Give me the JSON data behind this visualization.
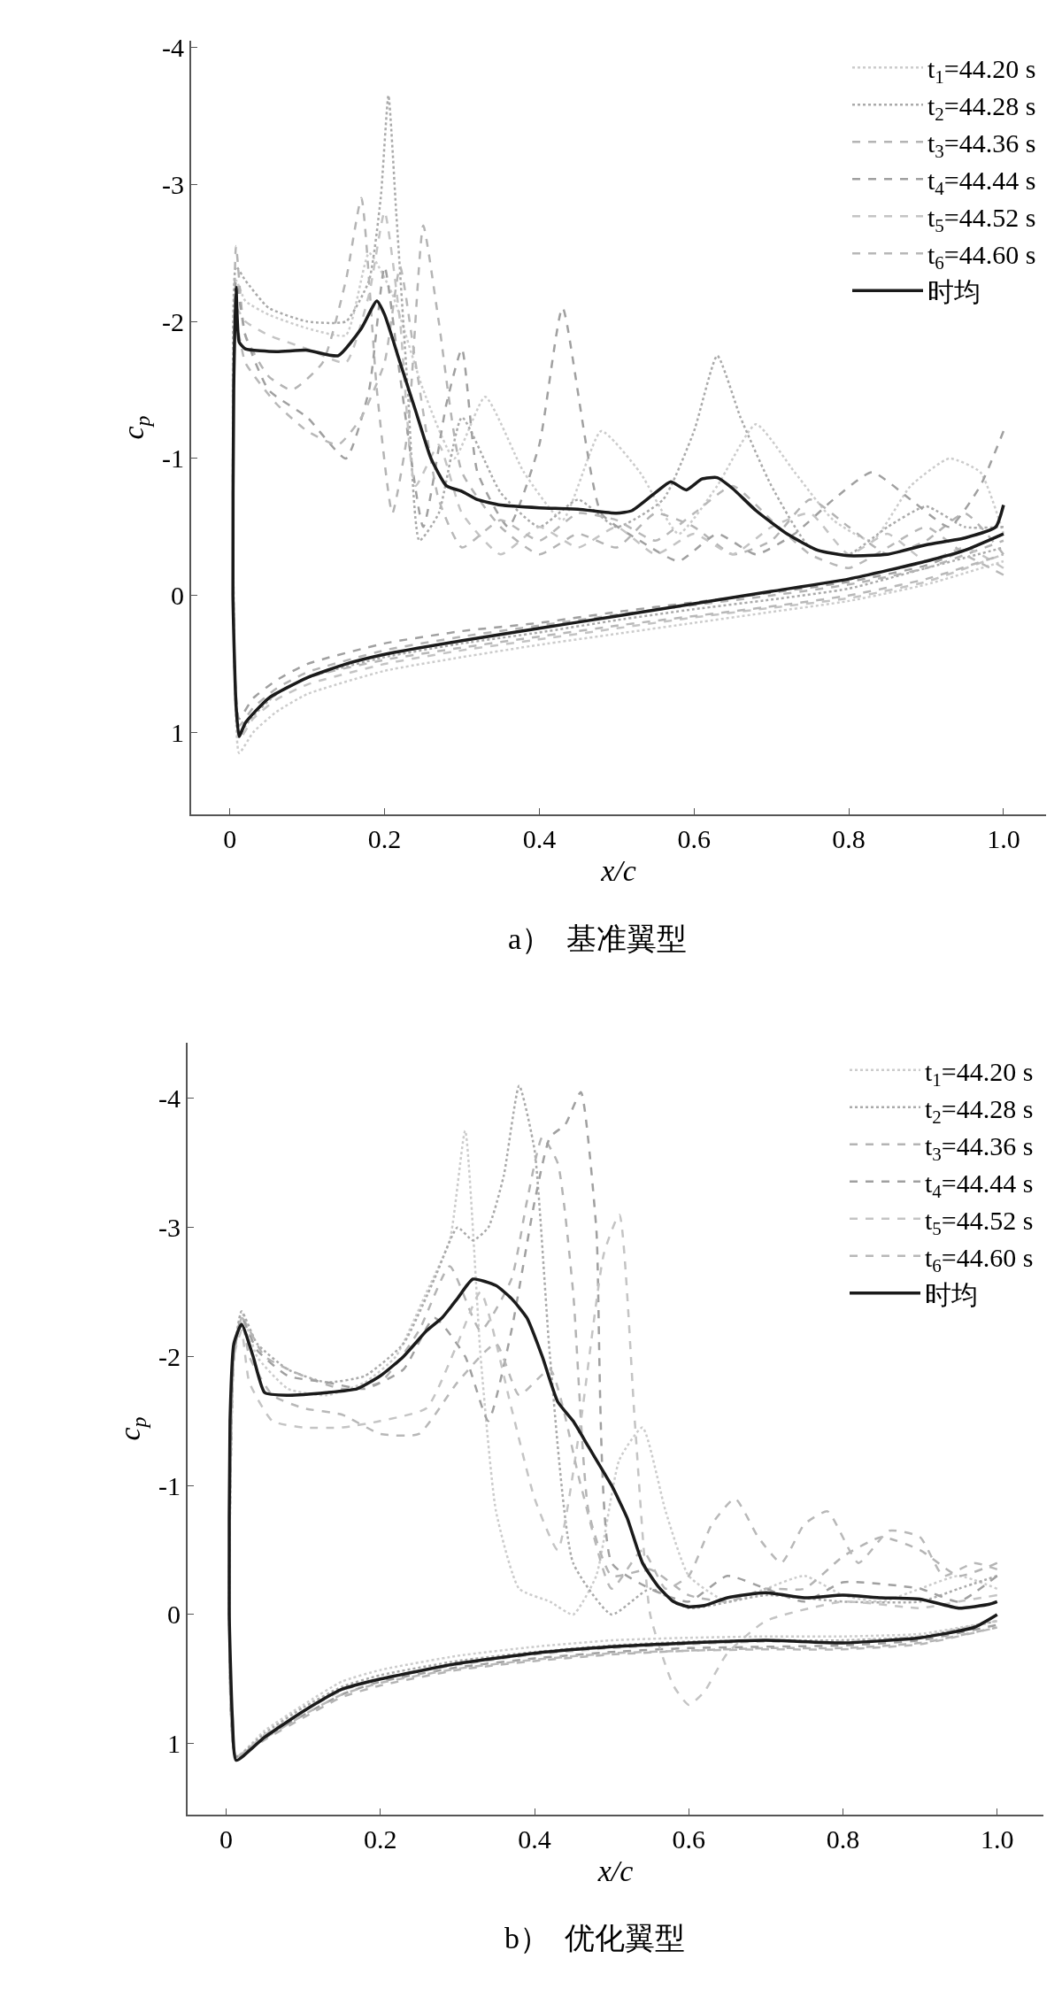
{
  "chart_data": [
    {
      "type": "line",
      "title": "a）  基准翼型",
      "xlabel": "x/c",
      "ylabel": "c$_{p}$",
      "xlim": [
        -0.05,
        1.055
      ],
      "ylim": [
        1.6,
        -4.05
      ],
      "xticks": [
        0,
        0.2,
        0.4,
        0.6,
        0.8,
        {
          "value": 1.0,
          "label": "1.0"
        }
      ],
      "yticks": [
        -4,
        -3,
        -2,
        -1,
        0,
        1
      ],
      "grid": false,
      "legend": "top right",
      "marker": "none",
      "series": [
        {
          "name": "t$_{1}$=44.20 s",
          "color": "#cccccc",
          "line_style": "dotted",
          "x": [
            1.0,
            0.97,
            0.93,
            0.88,
            0.83,
            0.78,
            0.73,
            0.68,
            0.63,
            0.58,
            0.53,
            0.48,
            0.43,
            0.38,
            0.33,
            0.29,
            0.25,
            0.21,
            0.18,
            0.15,
            0.1,
            0.05,
            0.02,
            0.008,
            0.004,
            0.006,
            0.012,
            0.03,
            0.06,
            0.1,
            0.2,
            0.3,
            0.4,
            0.5,
            0.6,
            0.7,
            0.8,
            0.9,
            1.0
          ],
          "values": [
            -0.45,
            -0.9,
            -1.0,
            -0.8,
            -0.4,
            -0.55,
            -0.9,
            -1.25,
            -0.8,
            -0.45,
            -0.9,
            -1.2,
            -0.55,
            -0.9,
            -1.45,
            -1.0,
            -1.5,
            -2.2,
            -2.5,
            -1.9,
            -1.95,
            -2.05,
            -2.15,
            -2.3,
            -1.0,
            0.5,
            1.15,
            1.0,
            0.85,
            0.72,
            0.55,
            0.45,
            0.36,
            0.28,
            0.2,
            0.12,
            0.04,
            -0.08,
            -0.25
          ]
        },
        {
          "name": "t$_{2}$=44.28 s",
          "color": "#aaaaaa",
          "line_style": "dotted",
          "x": [
            1.0,
            0.95,
            0.9,
            0.85,
            0.8,
            0.75,
            0.7,
            0.66,
            0.63,
            0.6,
            0.56,
            0.5,
            0.45,
            0.4,
            0.35,
            0.3,
            0.27,
            0.245,
            0.23,
            0.215,
            0.205,
            0.195,
            0.18,
            0.15,
            0.1,
            0.05,
            0.02,
            0.008,
            0.004,
            0.006,
            0.012,
            0.03,
            0.06,
            0.1,
            0.2,
            0.3,
            0.4,
            0.5,
            0.6,
            0.7,
            0.8,
            0.9,
            1.0
          ],
          "values": [
            -0.5,
            -0.5,
            -0.65,
            -0.5,
            -0.3,
            -0.35,
            -0.8,
            -1.3,
            -1.75,
            -1.2,
            -0.7,
            -0.5,
            -0.7,
            -0.5,
            -0.75,
            -1.3,
            -0.6,
            -0.4,
            -1.5,
            -2.8,
            -3.65,
            -2.9,
            -2.3,
            -2.0,
            -2.0,
            -2.1,
            -2.3,
            -2.4,
            -1.0,
            0.5,
            1.0,
            0.88,
            0.72,
            0.6,
            0.45,
            0.35,
            0.27,
            0.18,
            0.1,
            0.03,
            -0.05,
            -0.2,
            -0.35
          ]
        },
        {
          "name": "t$_{3}$=44.36 s",
          "color": "#b4b4b4",
          "line_style": "dashed",
          "x": [
            1.0,
            0.95,
            0.9,
            0.85,
            0.8,
            0.75,
            0.7,
            0.65,
            0.6,
            0.55,
            0.5,
            0.45,
            0.4,
            0.35,
            0.3,
            0.27,
            0.25,
            0.23,
            0.21,
            0.19,
            0.17,
            0.15,
            0.12,
            0.08,
            0.05,
            0.02,
            0.008,
            0.004,
            0.006,
            0.012,
            0.03,
            0.06,
            0.1,
            0.2,
            0.3,
            0.4,
            0.5,
            0.6,
            0.7,
            0.8,
            0.9,
            1.0
          ],
          "values": [
            -0.3,
            -0.6,
            -0.4,
            -0.3,
            -0.5,
            -0.7,
            -0.4,
            -0.3,
            -0.5,
            -0.6,
            -0.35,
            -0.45,
            -0.3,
            -0.5,
            -0.9,
            -2.0,
            -2.7,
            -1.2,
            -0.6,
            -1.5,
            -2.9,
            -2.3,
            -1.7,
            -1.5,
            -1.6,
            -1.9,
            -2.55,
            -1.0,
            0.5,
            0.95,
            0.82,
            0.68,
            0.56,
            0.4,
            0.3,
            0.22,
            0.14,
            0.07,
            0.0,
            -0.08,
            -0.2,
            -0.4
          ]
        },
        {
          "name": "t$_{4}$=44.44 s",
          "color": "#a0a0a0",
          "line_style": "dashed",
          "x": [
            1.0,
            0.97,
            0.93,
            0.88,
            0.83,
            0.78,
            0.73,
            0.68,
            0.63,
            0.58,
            0.53,
            0.48,
            0.43,
            0.4,
            0.36,
            0.32,
            0.3,
            0.28,
            0.25,
            0.22,
            0.2,
            0.18,
            0.15,
            0.1,
            0.05,
            0.02,
            0.008,
            0.004,
            0.006,
            0.012,
            0.03,
            0.06,
            0.1,
            0.2,
            0.3,
            0.4,
            0.5,
            0.6,
            0.7,
            0.8,
            0.9,
            1.0
          ],
          "values": [
            -1.2,
            -0.8,
            -0.5,
            -0.7,
            -0.9,
            -0.7,
            -0.45,
            -0.3,
            -0.45,
            -0.25,
            -0.4,
            -0.6,
            -2.1,
            -1.1,
            -0.5,
            -0.9,
            -1.8,
            -1.4,
            -0.5,
            -1.6,
            -2.4,
            -1.5,
            -1.0,
            -1.3,
            -1.5,
            -1.9,
            -2.3,
            -1.0,
            0.5,
            0.9,
            0.75,
            0.62,
            0.5,
            0.35,
            0.26,
            0.2,
            0.12,
            0.05,
            -0.02,
            -0.1,
            -0.22,
            -0.45
          ]
        },
        {
          "name": "t$_{5}$=44.52 s",
          "color": "#c4c4c4",
          "line_style": "dashed",
          "x": [
            1.0,
            0.95,
            0.9,
            0.85,
            0.8,
            0.75,
            0.7,
            0.65,
            0.6,
            0.55,
            0.5,
            0.45,
            0.4,
            0.35,
            0.3,
            0.27,
            0.24,
            0.22,
            0.2,
            0.18,
            0.15,
            0.1,
            0.05,
            0.02,
            0.008,
            0.004,
            0.006,
            0.012,
            0.03,
            0.06,
            0.1,
            0.2,
            0.3,
            0.4,
            0.5,
            0.6,
            0.7,
            0.8,
            0.9,
            1.0
          ],
          "values": [
            -0.2,
            -0.35,
            -0.25,
            -0.45,
            -0.3,
            -0.6,
            -0.5,
            -0.3,
            -0.45,
            -0.3,
            -0.5,
            -0.35,
            -0.5,
            -0.3,
            -0.6,
            -1.1,
            -0.8,
            -2.0,
            -2.8,
            -2.2,
            -1.7,
            -1.8,
            -1.9,
            -2.0,
            -2.1,
            -1.0,
            0.5,
            1.05,
            0.9,
            0.76,
            0.65,
            0.5,
            0.4,
            0.32,
            0.24,
            0.16,
            0.09,
            0.02,
            -0.1,
            -0.3
          ]
        },
        {
          "name": "t$_{6}$=44.60 s",
          "color": "#b8b8b8",
          "line_style": "dashed",
          "x": [
            1.0,
            0.95,
            0.9,
            0.85,
            0.8,
            0.75,
            0.7,
            0.65,
            0.6,
            0.55,
            0.5,
            0.45,
            0.4,
            0.35,
            0.3,
            0.27,
            0.24,
            0.22,
            0.2,
            0.17,
            0.14,
            0.1,
            0.06,
            0.02,
            0.008,
            0.004,
            0.006,
            0.012,
            0.03,
            0.06,
            0.1,
            0.2,
            0.3,
            0.4,
            0.5,
            0.6,
            0.7,
            0.8,
            0.9,
            1.0
          ],
          "values": [
            -0.15,
            -0.3,
            -0.5,
            -0.35,
            -0.2,
            -0.3,
            -0.55,
            -0.8,
            -0.6,
            -0.4,
            -0.55,
            -0.6,
            -0.4,
            -0.55,
            -0.35,
            -0.7,
            -1.7,
            -2.4,
            -1.7,
            -1.3,
            -1.1,
            -1.2,
            -1.4,
            -1.7,
            -2.0,
            -1.0,
            0.5,
            1.0,
            0.86,
            0.72,
            0.6,
            0.47,
            0.38,
            0.3,
            0.22,
            0.15,
            0.08,
            0.0,
            -0.12,
            -0.3
          ]
        },
        {
          "name": "时均",
          "color": "#1a1a1a",
          "line_style": "solid",
          "x": [
            1.0,
            0.99,
            0.95,
            0.9,
            0.85,
            0.8,
            0.76,
            0.72,
            0.68,
            0.65,
            0.63,
            0.61,
            0.59,
            0.57,
            0.55,
            0.52,
            0.5,
            0.45,
            0.4,
            0.35,
            0.32,
            0.3,
            0.28,
            0.26,
            0.24,
            0.22,
            0.2,
            0.19,
            0.17,
            0.14,
            0.1,
            0.06,
            0.02,
            0.012,
            0.008,
            0.005,
            0.004,
            0.008,
            0.012,
            0.02,
            0.05,
            0.1,
            0.15,
            0.2,
            0.3,
            0.4,
            0.5,
            0.6,
            0.7,
            0.8,
            0.9,
            0.95,
            1.0
          ],
          "values": [
            -0.66,
            -0.5,
            -0.42,
            -0.37,
            -0.3,
            -0.29,
            -0.33,
            -0.45,
            -0.62,
            -0.78,
            -0.86,
            -0.85,
            -0.77,
            -0.83,
            -0.75,
            -0.62,
            -0.6,
            -0.63,
            -0.64,
            -0.66,
            -0.7,
            -0.76,
            -0.8,
            -1.0,
            -1.35,
            -1.7,
            -2.05,
            -2.15,
            -1.95,
            -1.75,
            -1.79,
            -1.78,
            -1.8,
            -1.85,
            -2.25,
            -1.5,
            0.0,
            0.8,
            1.03,
            0.93,
            0.75,
            0.6,
            0.5,
            0.43,
            0.33,
            0.24,
            0.15,
            0.06,
            -0.03,
            -0.12,
            -0.25,
            -0.33,
            -0.45
          ]
        }
      ]
    },
    {
      "type": "line",
      "title": "b）  优化翼型",
      "xlabel": "x/c",
      "ylabel": "c$_{p}$",
      "xlim": [
        -0.05,
        1.06
      ],
      "ylim": [
        1.55,
        -4.43
      ],
      "xticks": [
        0,
        0.2,
        0.4,
        0.6,
        0.8,
        {
          "value": 1.0,
          "label": "1.0"
        }
      ],
      "yticks": [
        -4,
        -3,
        -2,
        -1,
        0,
        1
      ],
      "grid": false,
      "legend": "top right",
      "marker": "none",
      "series": [
        {
          "name": "t$_{1}$=44.20 s",
          "color": "#cccccc",
          "line_style": "dotted",
          "x": [
            1.0,
            0.95,
            0.9,
            0.85,
            0.8,
            0.75,
            0.7,
            0.65,
            0.6,
            0.57,
            0.54,
            0.51,
            0.48,
            0.45,
            0.42,
            0.38,
            0.35,
            0.33,
            0.31,
            0.29,
            0.26,
            0.22,
            0.18,
            0.13,
            0.08,
            0.04,
            0.02,
            0.01,
            0.004,
            0.013,
            0.05,
            0.1,
            0.15,
            0.2,
            0.3,
            0.4,
            0.5,
            0.6,
            0.7,
            0.8,
            0.9,
            1.0
          ],
          "values": [
            -0.2,
            -0.3,
            -0.2,
            -0.1,
            -0.15,
            -0.3,
            -0.2,
            -0.1,
            -0.3,
            -0.8,
            -1.45,
            -1.2,
            -0.3,
            0.0,
            -0.1,
            -0.2,
            -0.8,
            -2.0,
            -3.75,
            -2.9,
            -2.5,
            -2.0,
            -1.8,
            -1.7,
            -1.75,
            -2.0,
            -2.35,
            -2.0,
            0.0,
            1.1,
            0.9,
            0.7,
            0.52,
            0.43,
            0.32,
            0.25,
            0.2,
            0.18,
            0.17,
            0.17,
            0.15,
            0.05
          ]
        },
        {
          "name": "t$_{2}$=44.28 s",
          "color": "#aaaaaa",
          "line_style": "dotted",
          "x": [
            1.0,
            0.95,
            0.9,
            0.8,
            0.7,
            0.6,
            0.55,
            0.5,
            0.45,
            0.42,
            0.4,
            0.38,
            0.36,
            0.34,
            0.32,
            0.3,
            0.27,
            0.23,
            0.18,
            0.13,
            0.08,
            0.04,
            0.02,
            0.01,
            0.004,
            0.013,
            0.05,
            0.1,
            0.15,
            0.2,
            0.3,
            0.4,
            0.5,
            0.6,
            0.7,
            0.8,
            0.9,
            1.0
          ],
          "values": [
            -0.3,
            -0.2,
            -0.1,
            -0.1,
            -0.15,
            -0.05,
            -0.2,
            0.0,
            -0.4,
            -2.0,
            -3.6,
            -4.1,
            -3.4,
            -3.0,
            -2.9,
            -3.0,
            -2.6,
            -2.1,
            -1.85,
            -1.8,
            -1.9,
            -2.1,
            -2.35,
            -2.0,
            0.0,
            1.1,
            0.92,
            0.72,
            0.56,
            0.47,
            0.36,
            0.29,
            0.24,
            0.21,
            0.2,
            0.2,
            0.17,
            0.05
          ]
        },
        {
          "name": "t$_{3}$=44.36 s",
          "color": "#b4b4b4",
          "line_style": "dashed",
          "x": [
            1.0,
            0.95,
            0.9,
            0.85,
            0.8,
            0.75,
            0.7,
            0.65,
            0.6,
            0.55,
            0.5,
            0.47,
            0.45,
            0.43,
            0.41,
            0.39,
            0.37,
            0.33,
            0.29,
            0.25,
            0.2,
            0.15,
            0.1,
            0.05,
            0.02,
            0.01,
            0.004,
            0.013,
            0.05,
            0.1,
            0.15,
            0.2,
            0.3,
            0.4,
            0.5,
            0.6,
            0.7,
            0.8,
            0.9,
            1.0
          ],
          "values": [
            -0.4,
            -0.3,
            -0.5,
            -0.6,
            -0.45,
            -0.2,
            -0.2,
            -0.1,
            -0.15,
            -0.35,
            -0.3,
            -0.8,
            -2.5,
            -3.5,
            -3.7,
            -3.2,
            -2.6,
            -2.2,
            -2.7,
            -2.2,
            -1.8,
            -1.75,
            -1.85,
            -2.0,
            -2.3,
            -2.0,
            0.0,
            1.1,
            0.97,
            0.8,
            0.64,
            0.55,
            0.43,
            0.36,
            0.31,
            0.28,
            0.26,
            0.26,
            0.22,
            0.1
          ]
        },
        {
          "name": "t$_{4}$=44.44 s",
          "color": "#a0a0a0",
          "line_style": "dashed",
          "x": [
            1.0,
            0.95,
            0.9,
            0.8,
            0.75,
            0.7,
            0.65,
            0.6,
            0.55,
            0.5,
            0.48,
            0.46,
            0.44,
            0.42,
            0.4,
            0.37,
            0.34,
            0.31,
            0.27,
            0.23,
            0.18,
            0.13,
            0.08,
            0.04,
            0.02,
            0.01,
            0.004,
            0.013,
            0.05,
            0.1,
            0.15,
            0.2,
            0.3,
            0.4,
            0.5,
            0.6,
            0.7,
            0.8,
            0.9,
            1.0
          ],
          "values": [
            -0.3,
            -0.1,
            -0.2,
            -0.25,
            -0.1,
            -0.2,
            -0.3,
            -0.1,
            -0.2,
            -0.4,
            -3.0,
            -4.05,
            -3.8,
            -3.7,
            -3.2,
            -2.2,
            -1.5,
            -2.0,
            -2.3,
            -1.9,
            -1.75,
            -1.8,
            -1.85,
            -2.05,
            -2.3,
            -2.0,
            0.0,
            1.1,
            0.95,
            0.78,
            0.62,
            0.52,
            0.41,
            0.34,
            0.29,
            0.26,
            0.25,
            0.24,
            0.2,
            0.08
          ]
        },
        {
          "name": "t$_{5}$=44.52 s",
          "color": "#c4c4c4",
          "line_style": "dashed",
          "x": [
            1.0,
            0.95,
            0.9,
            0.8,
            0.7,
            0.65,
            0.62,
            0.6,
            0.58,
            0.55,
            0.53,
            0.51,
            0.49,
            0.46,
            0.43,
            0.4,
            0.37,
            0.33,
            0.3,
            0.26,
            0.2,
            0.15,
            0.1,
            0.06,
            0.03,
            0.02,
            0.01,
            0.004,
            0.013,
            0.05,
            0.1,
            0.15,
            0.2,
            0.3,
            0.4,
            0.5,
            0.6,
            0.7,
            0.8,
            0.9,
            1.0
          ],
          "values": [
            -0.15,
            -0.1,
            -0.05,
            -0.1,
            0.05,
            0.3,
            0.6,
            0.7,
            0.55,
            0.0,
            -1.5,
            -3.1,
            -2.8,
            -1.5,
            -0.5,
            -0.9,
            -1.6,
            -2.5,
            -2.1,
            -1.6,
            -1.5,
            -1.45,
            -1.45,
            -1.5,
            -1.8,
            -2.2,
            -2.0,
            0.0,
            1.1,
            0.93,
            0.75,
            0.59,
            0.5,
            0.39,
            0.31,
            0.26,
            0.23,
            0.21,
            0.21,
            0.17,
            0.05
          ]
        },
        {
          "name": "t$_{6}$=44.60 s",
          "color": "#b8b8b8",
          "line_style": "dashed",
          "x": [
            1.0,
            0.97,
            0.93,
            0.9,
            0.86,
            0.82,
            0.78,
            0.75,
            0.72,
            0.69,
            0.66,
            0.63,
            0.6,
            0.57,
            0.54,
            0.5,
            0.46,
            0.42,
            0.38,
            0.35,
            0.3,
            0.25,
            0.2,
            0.15,
            0.1,
            0.06,
            0.03,
            0.02,
            0.01,
            0.004,
            0.013,
            0.05,
            0.1,
            0.15,
            0.2,
            0.3,
            0.4,
            0.5,
            0.6,
            0.7,
            0.8,
            0.9,
            1.0
          ],
          "values": [
            -0.35,
            -0.4,
            -0.3,
            -0.6,
            -0.65,
            -0.4,
            -0.8,
            -0.7,
            -0.4,
            -0.6,
            -0.9,
            -0.7,
            -0.3,
            -0.2,
            -0.5,
            -0.2,
            -1.0,
            -1.9,
            -1.7,
            -2.1,
            -1.8,
            -1.4,
            -1.4,
            -1.55,
            -1.6,
            -1.7,
            -2.0,
            -2.3,
            -2.0,
            0.0,
            1.1,
            0.96,
            0.78,
            0.62,
            0.53,
            0.42,
            0.35,
            0.3,
            0.28,
            0.27,
            0.27,
            0.23,
            0.1
          ]
        },
        {
          "name": "时均",
          "color": "#1a1a1a",
          "line_style": "solid",
          "x": [
            1.0,
            0.99,
            0.95,
            0.9,
            0.85,
            0.8,
            0.75,
            0.7,
            0.65,
            0.62,
            0.6,
            0.58,
            0.56,
            0.54,
            0.52,
            0.5,
            0.49,
            0.47,
            0.45,
            0.43,
            0.41,
            0.39,
            0.37,
            0.35,
            0.32,
            0.3,
            0.28,
            0.26,
            0.23,
            0.2,
            0.17,
            0.13,
            0.08,
            0.05,
            0.035,
            0.02,
            0.01,
            0.005,
            0.004,
            0.008,
            0.013,
            0.05,
            0.1,
            0.15,
            0.2,
            0.3,
            0.4,
            0.5,
            0.6,
            0.7,
            0.8,
            0.9,
            0.97,
            1.0
          ],
          "values": [
            -0.1,
            -0.08,
            -0.05,
            -0.12,
            -0.13,
            -0.15,
            -0.13,
            -0.17,
            -0.13,
            -0.07,
            -0.06,
            -0.1,
            -0.22,
            -0.4,
            -0.75,
            -1.0,
            -1.1,
            -1.3,
            -1.5,
            -1.65,
            -2.0,
            -2.3,
            -2.45,
            -2.55,
            -2.6,
            -2.45,
            -2.3,
            -2.2,
            -2.0,
            -1.85,
            -1.75,
            -1.72,
            -1.7,
            -1.72,
            -2.0,
            -2.25,
            -2.1,
            -1.5,
            0.0,
            0.8,
            1.13,
            0.95,
            0.75,
            0.58,
            0.5,
            0.38,
            0.3,
            0.25,
            0.22,
            0.2,
            0.22,
            0.18,
            0.1,
            0.0
          ]
        }
      ]
    }
  ]
}
